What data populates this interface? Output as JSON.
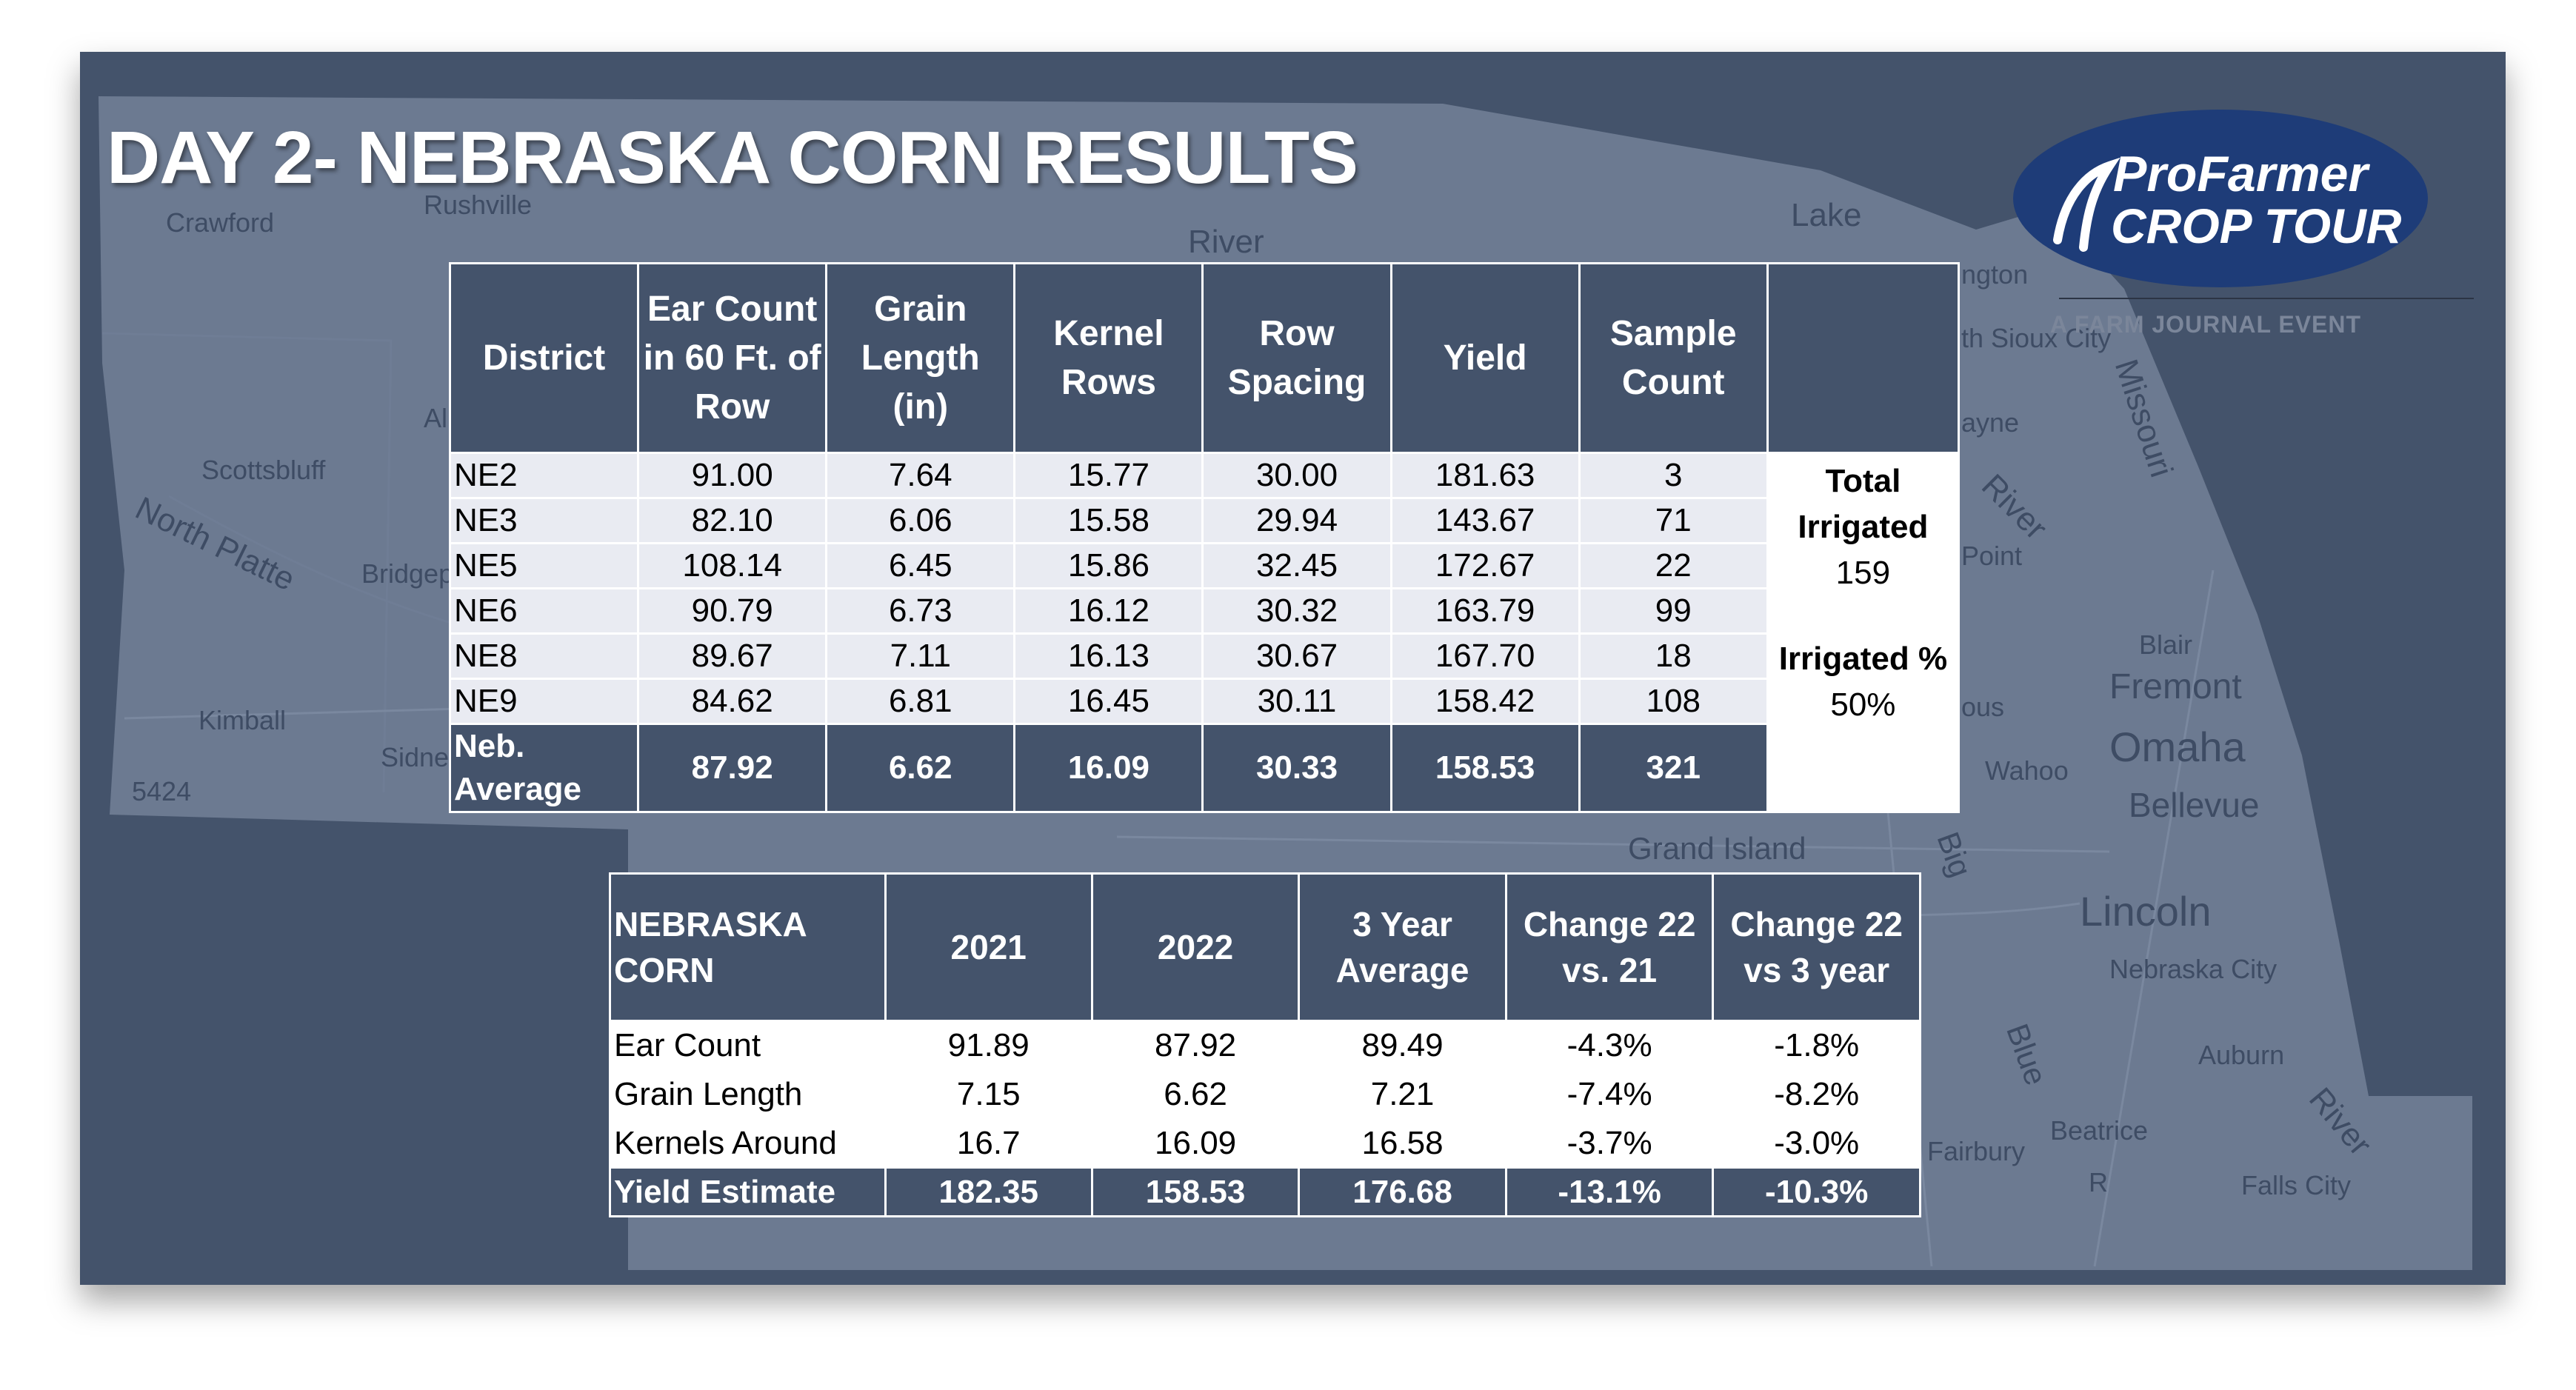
{
  "title": "DAY 2- NEBRASKA CORN RESULTS",
  "logo": {
    "line1": "ProFarmer",
    "line2": "CROP TOUR",
    "tagline": "A FARM JOURNAL EVENT",
    "colors": {
      "oval": "#1e3c78",
      "text": "#ffffff"
    }
  },
  "map_labels": [
    "Crawford",
    "Rushville",
    "Scottsbluff",
    "North Platte",
    "Bridgeport",
    "Kimball",
    "Sidney",
    "5424",
    "River",
    "Lake",
    "ngton",
    "th Sioux City",
    "Missouri",
    "ayne",
    "River",
    "Point",
    "Blair",
    "Fremont",
    "ous",
    "Wahoo",
    "Omaha",
    "Bellevue",
    "Grand Island",
    "Big",
    "Lincoln",
    "Nebraska City",
    "Auburn",
    "Blue",
    "Beatrice",
    "Fairbury",
    "River",
    "Falls City",
    "R",
    "Al"
  ],
  "district_table": {
    "columns": [
      "District",
      "Ear Count in 60 Ft. of Row",
      "Grain Length (in)",
      "Kernel Rows",
      "Row Spacing",
      "Yield",
      "Sample Count"
    ],
    "rows": [
      [
        "NE2",
        "91.00",
        "7.64",
        "15.77",
        "30.00",
        "181.63",
        "3"
      ],
      [
        "NE3",
        "82.10",
        "6.06",
        "15.58",
        "29.94",
        "143.67",
        "71"
      ],
      [
        "NE5",
        "108.14",
        "6.45",
        "15.86",
        "32.45",
        "172.67",
        "22"
      ],
      [
        "NE6",
        "90.79",
        "6.73",
        "16.12",
        "30.32",
        "163.79",
        "99"
      ],
      [
        "NE8",
        "89.67",
        "7.11",
        "16.13",
        "30.67",
        "167.70",
        "18"
      ],
      [
        "NE9",
        "84.62",
        "6.81",
        "16.45",
        "30.11",
        "158.42",
        "108"
      ]
    ],
    "average": [
      "Neb. Average",
      "87.92",
      "6.62",
      "16.09",
      "30.33",
      "158.53",
      "321"
    ],
    "side": {
      "total_label_1": "Total",
      "total_label_2": "Irrigated",
      "total_value": "159",
      "pct_label": "Irrigated %",
      "pct_value": "50%"
    }
  },
  "summary_table": {
    "columns": [
      "NEBRASKA CORN",
      "2021",
      "2022",
      "3 Year Average",
      "Change 22 vs. 21",
      "Change 22 vs 3 year"
    ],
    "rows": [
      [
        "Ear Count",
        "91.89",
        "87.92",
        "89.49",
        "-4.3%",
        "-1.8%"
      ],
      [
        "Grain Length",
        "7.15",
        "6.62",
        "7.21",
        "-7.4%",
        "-8.2%"
      ],
      [
        "Kernels Around",
        "16.7",
        "16.09",
        "16.58",
        "-3.7%",
        "-3.0%"
      ],
      [
        "Yield Estimate",
        "182.35",
        "158.53",
        "176.68",
        "-13.1%",
        "-10.3%"
      ]
    ]
  }
}
